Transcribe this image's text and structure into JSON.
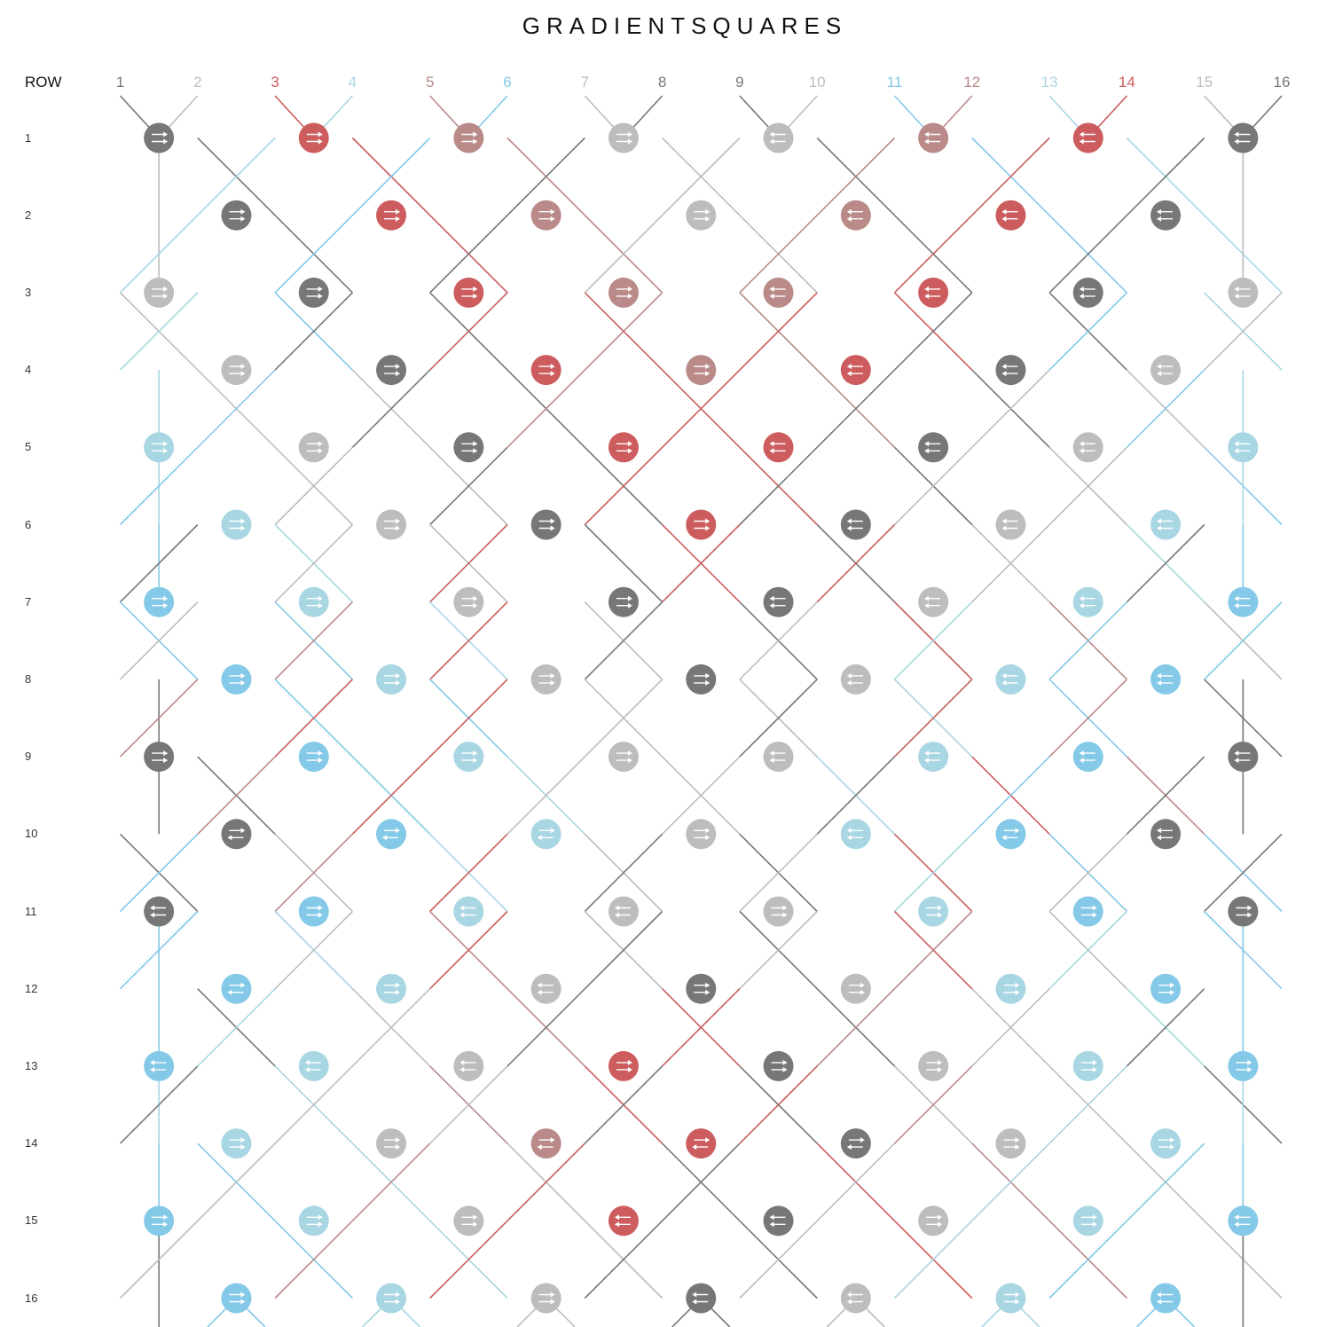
{
  "title": "GRADIENTSQUARES",
  "row_header": "ROW",
  "colors": {
    "dark": "#777777",
    "gray": "#bdbdbd",
    "red": "#cc5c5e",
    "pink": "#b98a88",
    "lightblue": "#a9d6e3",
    "blue": "#84c9e7"
  },
  "columns": [
    {
      "label": "1",
      "color": "dark"
    },
    {
      "label": "2",
      "color": "gray"
    },
    {
      "label": "3",
      "color": "red"
    },
    {
      "label": "4",
      "color": "lightblue"
    },
    {
      "label": "5",
      "color": "pink"
    },
    {
      "label": "6",
      "color": "blue"
    },
    {
      "label": "7",
      "color": "gray"
    },
    {
      "label": "8",
      "color": "dark"
    },
    {
      "label": "9",
      "color": "dark"
    },
    {
      "label": "10",
      "color": "gray"
    },
    {
      "label": "11",
      "color": "blue"
    },
    {
      "label": "12",
      "color": "pink"
    },
    {
      "label": "13",
      "color": "lightblue"
    },
    {
      "label": "14",
      "color": "red"
    },
    {
      "label": "15",
      "color": "gray"
    },
    {
      "label": "16",
      "color": "dark"
    }
  ],
  "rows": [
    "1",
    "2",
    "3",
    "4",
    "5",
    "6",
    "7",
    "8",
    "9",
    "10",
    "11",
    "12",
    "13",
    "14",
    "15",
    "16"
  ],
  "nodes": [
    [
      "dark:rr",
      "red:rr",
      "pink:rr",
      "gray:rr",
      "gray:ll",
      "pink:ll",
      "red:ll",
      "dark:ll"
    ],
    [
      "dark:rr",
      "red:rr",
      "pink:rr",
      "gray:rr",
      "pink:ll",
      "red:ll",
      "dark:ll"
    ],
    [
      "gray:rr",
      "dark:rr",
      "red:rr",
      "pink:rr",
      "pink:ll",
      "red:ll",
      "dark:ll",
      "gray:ll"
    ],
    [
      "gray:rr",
      "dark:rr",
      "red:rr",
      "pink:rr",
      "red:ll",
      "dark:ll",
      "gray:ll"
    ],
    [
      "lightblue:rr",
      "gray:rr",
      "dark:rr",
      "red:rr",
      "red:ll",
      "dark:ll",
      "gray:ll",
      "lightblue:ll"
    ],
    [
      "lightblue:rr",
      "gray:rr",
      "dark:rr",
      "red:rr",
      "dark:ll",
      "gray:ll",
      "lightblue:ll"
    ],
    [
      "blue:rr",
      "lightblue:rr",
      "gray:rr",
      "dark:rr",
      "dark:ll",
      "gray:ll",
      "lightblue:ll",
      "blue:ll"
    ],
    [
      "blue:rr",
      "lightblue:rr",
      "gray:rr",
      "dark:rr",
      "gray:ll",
      "lightblue:ll",
      "blue:ll"
    ],
    [
      "dark:rr",
      "blue:rr",
      "lightblue:rr",
      "gray:rr",
      "gray:ll",
      "lightblue:ll",
      "blue:ll",
      "dark:ll"
    ],
    [
      "dark:rl",
      "blue:rl",
      "lightblue:rl",
      "gray:rr",
      "lightblue:ll",
      "blue:rl",
      "dark:ll"
    ],
    [
      "dark:ll",
      "blue:rr",
      "lightblue:ll",
      "gray:ll",
      "gray:rr",
      "lightblue:rr",
      "blue:rr",
      "dark:rr"
    ],
    [
      "blue:rl",
      "lightblue:rr",
      "gray:ll",
      "dark:rr",
      "gray:rr",
      "lightblue:rr",
      "blue:rr"
    ],
    [
      "blue:ll",
      "lightblue:ll",
      "gray:ll",
      "red:rr",
      "dark:rr",
      "gray:rr",
      "lightblue:rr",
      "blue:rr"
    ],
    [
      "lightblue:rr",
      "gray:rr",
      "pink:rl",
      "red:rl",
      "dark:rl",
      "gray:rr",
      "lightblue:rr"
    ],
    [
      "blue:rr",
      "lightblue:rr",
      "gray:rr",
      "red:ll",
      "dark:ll",
      "gray:rr",
      "lightblue:rr",
      "blue:ll"
    ],
    [
      "blue:rr",
      "lightblue:rr",
      "gray:rr",
      "dark:ll",
      "gray:ll",
      "lightblue:rr",
      "blue:ll"
    ]
  ],
  "segments": [
    [
      "dark:r",
      "gray:l",
      "red:r",
      "lightblue:l",
      "pink:r",
      "blue:l",
      "gray:r",
      "dark:l",
      "dark:r",
      "gray:l",
      "blue:r",
      "pink:l",
      "lightblue:r",
      "red:l",
      "gray:r",
      "dark:l"
    ],
    [
      "gray:v",
      "dark:r",
      "lightblue:l",
      "red:r",
      "blue:l",
      "pink:r",
      "dark:l",
      "gray:r",
      "gray:l",
      "dark:r",
      "pink:l",
      "blue:r",
      "red:l",
      "lightblue:r",
      "dark:l",
      "gray:v"
    ],
    [
      "gray:v",
      "lightblue:l",
      "dark:r",
      "blue:l",
      "red:r",
      "dark:l",
      "pink:r",
      "gray:l",
      "gray:r",
      "pink:l",
      "dark:r",
      "red:l",
      "blue:r",
      "dark:l",
      "lightblue:r",
      "gray:v"
    ],
    [
      "gray:r",
      "lightblue:l",
      "blue:r",
      "dark:l",
      "dark:r",
      "red:l",
      "red:r",
      "pink:l",
      "pink:r",
      "red:l",
      "red:r",
      "dark:l",
      "dark:r",
      "blue:l",
      "lightblue:r",
      "gray:l"
    ],
    [
      "lightblue:v",
      "gray:r",
      "blue:l",
      "gray:r",
      "dark:l",
      "dark:r",
      "pink:l",
      "red:r",
      "red:l",
      "pink:r",
      "dark:l",
      "dark:r",
      "gray:l",
      "gray:r",
      "blue:l",
      "lightblue:v"
    ],
    [
      "lightblue:v",
      "blue:l",
      "gray:r",
      "gray:l",
      "gray:r",
      "dark:l",
      "dark:r",
      "red:l",
      "red:r",
      "dark:l",
      "dark:r",
      "gray:l",
      "gray:r",
      "gray:l",
      "blue:r",
      "lightblue:v"
    ],
    [
      "blue:v",
      "dark:l",
      "lightblue:r",
      "gray:l",
      "gray:r",
      "red:l",
      "dark:r",
      "red:r",
      "red:l",
      "dark:r",
      "red:l",
      "gray:r",
      "gray:l",
      "lightblue:r",
      "dark:l",
      "blue:v"
    ],
    [
      "blue:r",
      "gray:l",
      "blue:r",
      "pink:l",
      "lightblue:r",
      "red:l",
      "gray:r",
      "dark:l",
      "dark:r",
      "gray:l",
      "red:r",
      "lightblue:l",
      "pink:r",
      "blue:l",
      "gray:r",
      "blue:l"
    ],
    [
      "dark:v",
      "pink:l",
      "blue:r",
      "red:l",
      "blue:r",
      "red:l",
      "gray:r",
      "gray:l",
      "gray:r",
      "dark:l",
      "lightblue:r",
      "red:l",
      "blue:r",
      "pink:l",
      "dark:r",
      "dark:v"
    ],
    [
      "dark:v",
      "dark:r",
      "pink:l",
      "blue:r",
      "red:l",
      "lightblue:r",
      "gray:l",
      "gray:r",
      "gray:l",
      "lightblue:r",
      "dark:l",
      "red:r",
      "blue:l",
      "pink:r",
      "dark:l",
      "dark:v"
    ],
    [
      "dark:r",
      "blue:l",
      "gray:r",
      "pink:l",
      "lightblue:r",
      "red:l",
      "gray:r",
      "dark:l",
      "dark:r",
      "gray:l",
      "red:r",
      "lightblue:l",
      "blue:r",
      "gray:l",
      "blue:r",
      "dark:l"
    ],
    [
      "blue:v",
      "blue:l",
      "lightblue:r",
      "gray:l",
      "pink:r",
      "red:l",
      "gray:r",
      "dark:l",
      "dark:r",
      "gray:l",
      "red:r",
      "pink:l",
      "gray:r",
      "lightblue:l",
      "blue:r",
      "blue:v"
    ],
    [
      "blue:v",
      "dark:r",
      "lightblue:l",
      "gray:r",
      "gray:l",
      "pink:r",
      "dark:l",
      "red:r",
      "red:l",
      "dark:r",
      "pink:l",
      "gray:r",
      "gray:l",
      "lightblue:r",
      "dark:l",
      "blue:v"
    ],
    [
      "lightblue:v",
      "dark:l",
      "lightblue:r",
      "gray:l",
      "pink:r",
      "gray:l",
      "red:r",
      "dark:l",
      "dark:r",
      "red:l",
      "gray:r",
      "pink:l",
      "gray:r",
      "lightblue:l",
      "dark:r",
      "lightblue:v"
    ],
    [
      "blue:v",
      "blue:r",
      "gray:l",
      "lightblue:r",
      "pink:l",
      "gray:r",
      "red:l",
      "dark:r",
      "dark:l",
      "red:r",
      "gray:l",
      "pink:r",
      "lightblue:l",
      "gray:r",
      "blue:l",
      "blue:v"
    ],
    [
      "dark:v",
      "gray:l",
      "blue:r",
      "pink:l",
      "lightblue:r",
      "red:l",
      "gray:r",
      "dark:l",
      "dark:r",
      "gray:l",
      "red:r",
      "lightblue:l",
      "pink:r",
      "blue:l",
      "gray:r",
      "dark:v"
    ]
  ]
}
